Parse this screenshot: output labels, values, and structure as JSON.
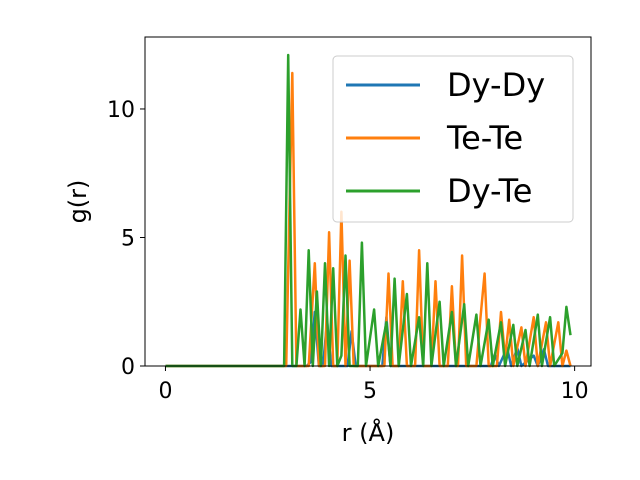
{
  "chart_data": {
    "type": "line",
    "xlabel": "r (Å)",
    "ylabel": "g(r)",
    "xlim": [
      -0.5,
      10.4
    ],
    "ylim": [
      0,
      12.8
    ],
    "xticks": [
      0,
      5,
      10
    ],
    "yticks": [
      0,
      5,
      10
    ],
    "grid": false,
    "legend_position": "top-right",
    "series": [
      {
        "name": "Dy-Dy",
        "color": "#1f77b4",
        "points": [
          [
            0,
            0
          ],
          [
            3.45,
            0
          ],
          [
            3.55,
            0.15
          ],
          [
            3.65,
            2.1
          ],
          [
            3.75,
            0
          ],
          [
            3.85,
            0
          ],
          [
            3.95,
            1.75
          ],
          [
            4.05,
            0
          ],
          [
            4.45,
            0
          ],
          [
            4.55,
            1.35
          ],
          [
            4.65,
            0
          ],
          [
            5.3,
            0
          ],
          [
            5.4,
            1.9
          ],
          [
            5.5,
            0
          ],
          [
            7.95,
            0
          ],
          [
            8.05,
            0.45
          ],
          [
            8.15,
            0
          ],
          [
            8.35,
            0.7
          ],
          [
            8.45,
            0
          ],
          [
            8.6,
            0.7
          ],
          [
            8.7,
            0
          ],
          [
            9.0,
            0.4
          ],
          [
            9.1,
            0
          ],
          [
            9.25,
            0.65
          ],
          [
            9.35,
            0
          ],
          [
            9.9,
            0
          ]
        ]
      },
      {
        "name": "Te-Te",
        "color": "#ff7f0e",
        "points": [
          [
            0,
            0
          ],
          [
            2.95,
            0
          ],
          [
            3.1,
            11.4
          ],
          [
            3.2,
            0
          ],
          [
            3.5,
            0
          ],
          [
            3.65,
            4.0
          ],
          [
            3.75,
            0
          ],
          [
            3.9,
            0
          ],
          [
            4.0,
            5.2
          ],
          [
            4.1,
            0
          ],
          [
            4.2,
            0
          ],
          [
            4.3,
            6.0
          ],
          [
            4.4,
            0
          ],
          [
            4.5,
            4.1
          ],
          [
            4.6,
            0
          ],
          [
            5.35,
            0
          ],
          [
            5.45,
            3.6
          ],
          [
            5.55,
            0
          ],
          [
            5.7,
            0
          ],
          [
            5.8,
            3.3
          ],
          [
            5.9,
            0
          ],
          [
            6.1,
            0
          ],
          [
            6.2,
            4.5
          ],
          [
            6.3,
            0
          ],
          [
            6.5,
            0
          ],
          [
            6.6,
            3.3
          ],
          [
            6.7,
            0
          ],
          [
            6.9,
            0
          ],
          [
            7.0,
            3.1
          ],
          [
            7.1,
            0
          ],
          [
            7.15,
            0
          ],
          [
            7.25,
            4.3
          ],
          [
            7.35,
            0
          ],
          [
            7.6,
            0
          ],
          [
            7.7,
            1.9
          ],
          [
            7.8,
            3.6
          ],
          [
            7.9,
            0
          ],
          [
            8.1,
            0
          ],
          [
            8.2,
            2.1
          ],
          [
            8.3,
            0.3
          ],
          [
            8.4,
            1.8
          ],
          [
            8.5,
            0
          ],
          [
            8.7,
            1.5
          ],
          [
            8.8,
            0
          ],
          [
            9.0,
            1.9
          ],
          [
            9.1,
            0
          ],
          [
            9.3,
            1.7
          ],
          [
            9.4,
            0
          ],
          [
            9.6,
            1.7
          ],
          [
            9.7,
            0
          ],
          [
            9.8,
            0.6
          ],
          [
            9.9,
            0
          ]
        ]
      },
      {
        "name": "Dy-Te",
        "color": "#2ca02c",
        "points": [
          [
            0,
            0
          ],
          [
            2.9,
            0
          ],
          [
            3.0,
            12.1
          ],
          [
            3.1,
            0
          ],
          [
            3.2,
            0
          ],
          [
            3.3,
            2.2
          ],
          [
            3.4,
            0
          ],
          [
            3.5,
            4.5
          ],
          [
            3.6,
            0
          ],
          [
            3.7,
            2.9
          ],
          [
            3.8,
            0
          ],
          [
            3.9,
            4.0
          ],
          [
            4.0,
            0
          ],
          [
            4.1,
            3.8
          ],
          [
            4.2,
            0
          ],
          [
            4.3,
            0.4
          ],
          [
            4.4,
            4.3
          ],
          [
            4.5,
            0
          ],
          [
            4.7,
            0
          ],
          [
            4.8,
            4.8
          ],
          [
            4.9,
            0
          ],
          [
            5.1,
            2.2
          ],
          [
            5.2,
            0
          ],
          [
            5.4,
            1.7
          ],
          [
            5.5,
            0
          ],
          [
            5.6,
            3.4
          ],
          [
            5.7,
            0
          ],
          [
            5.9,
            2.8
          ],
          [
            6.0,
            0
          ],
          [
            6.2,
            1.9
          ],
          [
            6.3,
            0
          ],
          [
            6.4,
            4.0
          ],
          [
            6.5,
            0
          ],
          [
            6.7,
            2.5
          ],
          [
            6.8,
            0
          ],
          [
            7.0,
            2.1
          ],
          [
            7.1,
            0
          ],
          [
            7.3,
            2.4
          ],
          [
            7.4,
            0
          ],
          [
            7.6,
            2.0
          ],
          [
            7.7,
            0
          ],
          [
            7.9,
            1.8
          ],
          [
            8.0,
            0
          ],
          [
            8.2,
            1.7
          ],
          [
            8.3,
            0
          ],
          [
            8.5,
            1.6
          ],
          [
            8.6,
            0
          ],
          [
            8.8,
            1.4
          ],
          [
            8.9,
            0
          ],
          [
            9.1,
            2.0
          ],
          [
            9.2,
            0
          ],
          [
            9.4,
            1.9
          ],
          [
            9.5,
            0
          ],
          [
            9.7,
            0.5
          ],
          [
            9.8,
            2.3
          ],
          [
            9.9,
            1.2
          ]
        ]
      }
    ]
  }
}
